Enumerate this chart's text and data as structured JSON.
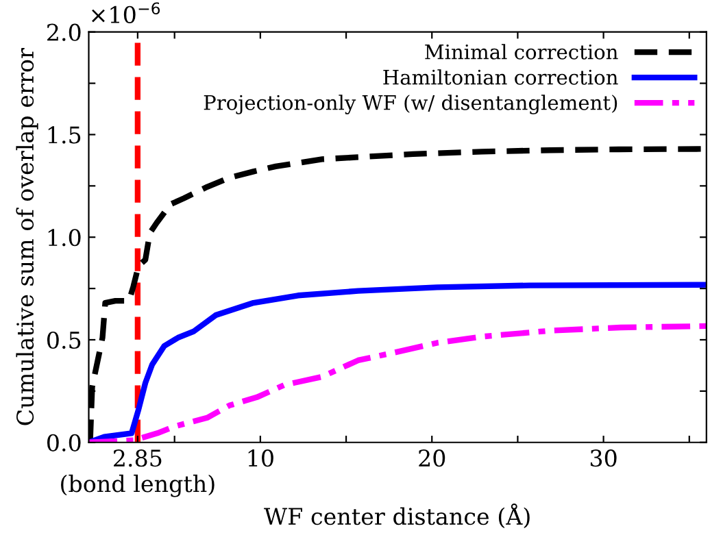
{
  "chart_data": {
    "type": "line",
    "xlabel": "WF center distance (Å)",
    "ylabel": "Cumulative sum of overlap error",
    "annotations": [
      "×10$^{−6}$"
    ],
    "xlim": [
      0,
      36
    ],
    "ylim": [
      0,
      2.0
    ],
    "xticks": [
      {
        "value": 2.85,
        "label": "2.85\n(bond length)"
      },
      {
        "value": 5,
        "label": null
      },
      10,
      {
        "value": 15,
        "label": null
      },
      20,
      {
        "value": 25,
        "label": null
      },
      30,
      {
        "value": 35,
        "label": null
      }
    ],
    "yticks": [
      {
        "value": 0,
        "label": "0.0"
      },
      {
        "value": 0.25,
        "label": null
      },
      {
        "value": 0.5,
        "label": "0.5"
      },
      {
        "value": 0.75,
        "label": null
      },
      {
        "value": 1.0,
        "label": "1.0"
      },
      {
        "value": 1.25,
        "label": null
      },
      {
        "value": 1.5,
        "label": "1.5"
      },
      {
        "value": 1.75,
        "label": null
      },
      {
        "value": 2.0,
        "label": "2.0"
      }
    ],
    "grid": false,
    "legend": "top right",
    "ref_lines": [
      {
        "axis": "x",
        "value": 2.85,
        "color": "#ff0000",
        "line_style": "dashed"
      }
    ],
    "series": [
      {
        "name": "Minimal correction",
        "color": "#000000",
        "line_style": "dashed",
        "x": [
          0.08,
          0.2,
          0.8,
          0.96,
          1.55,
          2.35,
          2.6,
          2.9,
          3.3,
          3.56,
          3.96,
          4.76,
          5.56,
          6.9,
          8.2,
          9.6,
          10.9,
          13.6,
          15.7,
          18.9,
          22.9,
          26.9,
          30.9,
          36
        ],
        "values": [
          0,
          0.27,
          0.51,
          0.68,
          0.69,
          0.69,
          0.76,
          0.86,
          0.89,
          1.02,
          1.07,
          1.16,
          1.19,
          1.245,
          1.29,
          1.32,
          1.345,
          1.38,
          1.39,
          1.405,
          1.417,
          1.424,
          1.428,
          1.43
        ]
      },
      {
        "name": "Hamiltonian correction",
        "color": "#0000ff",
        "line_style": "solid",
        "x": [
          0,
          0.9,
          2.5,
          2.9,
          3.3,
          3.7,
          4.4,
          5.2,
          6.1,
          7.4,
          9.6,
          12.2,
          15.7,
          20.3,
          25.7,
          36
        ],
        "values": [
          0,
          0.027,
          0.045,
          0.16,
          0.29,
          0.38,
          0.47,
          0.51,
          0.54,
          0.62,
          0.68,
          0.716,
          0.738,
          0.756,
          0.765,
          0.768
        ]
      },
      {
        "name": "Projection-only WF (w/ disentanglement)",
        "color": "#ff00ff",
        "line_style": "dashdot",
        "x": [
          0,
          2.6,
          4,
          5,
          6.9,
          8.2,
          9.8,
          11.4,
          13.6,
          15.7,
          17.6,
          20.3,
          23,
          27,
          31,
          36
        ],
        "values": [
          0,
          0.01,
          0.045,
          0.078,
          0.12,
          0.18,
          0.22,
          0.28,
          0.32,
          0.4,
          0.434,
          0.485,
          0.516,
          0.545,
          0.56,
          0.567
        ]
      }
    ]
  }
}
